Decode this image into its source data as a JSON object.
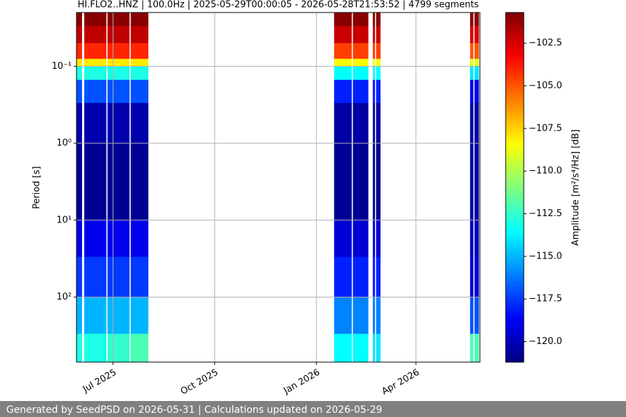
{
  "chart_data": {
    "type": "spectrogram",
    "title": "HI.FLO2..HNZ | 100.0Hz | 2025-05-29T00:00:05 - 2026-05-28T21:53:52 | 4799 segments",
    "y_label": "Period [s]",
    "colorbar_label": "Amplitude [m²/s⁴/Hz] [dB]",
    "xlim": [
      "2025-05-29T00:00:05",
      "2026-05-28T21:53:52"
    ],
    "xticks": [
      {
        "value": "2025-07-01",
        "label": "Jul 2025"
      },
      {
        "value": "2025-10-01",
        "label": "Oct 2025"
      },
      {
        "value": "2026-01-01",
        "label": "Jan 2026"
      },
      {
        "value": "2026-04-01",
        "label": "Apr 2026"
      }
    ],
    "yscale": "log",
    "ylim": [
      700,
      0.02
    ],
    "yticks": [
      {
        "value": 0.1,
        "label": "10⁻¹"
      },
      {
        "value": 1,
        "label": "10⁰"
      },
      {
        "value": 10,
        "label": "10¹"
      },
      {
        "value": 100,
        "label": "10²"
      }
    ],
    "grid": true,
    "colormap": "jet",
    "clim": [
      -121.2,
      -100.7
    ],
    "cticks": [
      {
        "value": -102.5,
        "label": "−102.5"
      },
      {
        "value": -105,
        "label": "−105.0"
      },
      {
        "value": -107.5,
        "label": "−107.5"
      },
      {
        "value": -110,
        "label": "−110.0"
      },
      {
        "value": -112.5,
        "label": "−112.5"
      },
      {
        "value": -115,
        "label": "−115.0"
      },
      {
        "value": -117.5,
        "label": "−117.5"
      },
      {
        "value": -120,
        "label": "−120.0"
      }
    ],
    "period_bins": [
      0.02,
      0.03,
      0.05,
      0.08,
      0.1,
      0.15,
      0.3,
      1,
      10,
      30,
      100,
      300,
      700
    ],
    "segments": [
      {
        "start": "2025-05-29",
        "end": "2025-06-03",
        "values": [
          -100.9,
          -102,
          -104,
          -108,
          -113,
          -117,
          -120.3,
          -120.8,
          -119,
          -117.5,
          -115,
          -113
        ]
      },
      {
        "start": "2025-06-05",
        "end": "2025-06-25",
        "values": [
          -100.9,
          -102,
          -104,
          -108,
          -113,
          -117,
          -120.3,
          -120.8,
          -119,
          -117.5,
          -115,
          -113
        ]
      },
      {
        "start": "2025-06-26",
        "end": "2025-07-16",
        "values": [
          -100.9,
          -102,
          -104,
          -108,
          -113,
          -117,
          -120.3,
          -120.8,
          -119,
          -117.5,
          -115,
          -112.5
        ]
      },
      {
        "start": "2025-07-17",
        "end": "2025-08-02",
        "values": [
          -100.9,
          -102,
          -104,
          -108,
          -113,
          -117,
          -120.3,
          -120.8,
          -119,
          -117.5,
          -115,
          -112
        ]
      },
      {
        "start": "2026-01-17",
        "end": "2026-02-02",
        "values": [
          -100.9,
          -102.2,
          -104.5,
          -108.5,
          -113.5,
          -118,
          -120.5,
          -120.8,
          -119.5,
          -118,
          -116,
          -113.5
        ]
      },
      {
        "start": "2026-02-03",
        "end": "2026-02-17",
        "values": [
          -100.9,
          -102.2,
          -104.5,
          -108.5,
          -113.5,
          -118,
          -120.5,
          -120.8,
          -119.5,
          -118,
          -116,
          -113.5
        ]
      },
      {
        "start": "2026-02-21",
        "end": "2026-02-23",
        "values": [
          -100.9,
          -102.2,
          -104.5,
          -108.5,
          -113.5,
          -118,
          -120.5,
          -120.8,
          -119.5,
          -118,
          -116,
          -114
        ]
      },
      {
        "start": "2026-02-24",
        "end": "2026-02-28",
        "values": [
          -100.9,
          -102.2,
          -104.5,
          -108.5,
          -113.5,
          -118,
          -120.5,
          -120.8,
          -119.5,
          -118,
          -116,
          -114
        ]
      },
      {
        "start": "2026-05-20",
        "end": "2026-05-23",
        "values": [
          -100.9,
          -102.5,
          -105,
          -109,
          -114,
          -119,
          -120.5,
          -120.5,
          -120,
          -119.5,
          -117,
          -112
        ]
      },
      {
        "start": "2026-05-24",
        "end": "2026-05-28",
        "values": [
          -100.9,
          -102.5,
          -105,
          -109,
          -114,
          -119,
          -120.5,
          -120.5,
          -120,
          -119.5,
          -117,
          -112
        ]
      }
    ]
  },
  "footer": "Generated by SeedPSD on 2026-05-31 | Calculations updated on 2026-05-29"
}
